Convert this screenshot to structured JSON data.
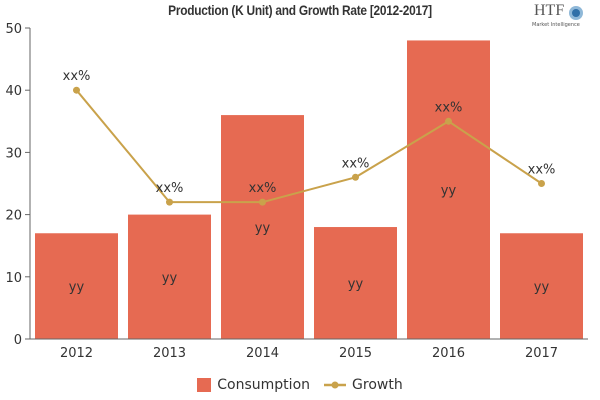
{
  "chart_data": {
    "type": "bar",
    "title": "Production (K Unit) and Growth Rate [2012-2017]",
    "categories": [
      "2012",
      "2013",
      "2014",
      "2015",
      "2016",
      "2017"
    ],
    "ylim": [
      0,
      50
    ],
    "yticks": [
      0,
      10,
      20,
      30,
      40,
      50
    ],
    "grid": false,
    "legend": "bottom",
    "series": [
      {
        "name": "Consumption",
        "type": "bar",
        "color": "#E66A52",
        "values": [
          17,
          20,
          36,
          18,
          48,
          17
        ],
        "data_label": "yy"
      },
      {
        "name": "Growth",
        "type": "line",
        "color": "#C9A24B",
        "values": [
          40,
          22,
          22,
          26,
          35,
          25
        ],
        "data_label": "xx%"
      }
    ]
  },
  "logo": {
    "text": "HTF",
    "subtext": "Market Intelligence"
  }
}
